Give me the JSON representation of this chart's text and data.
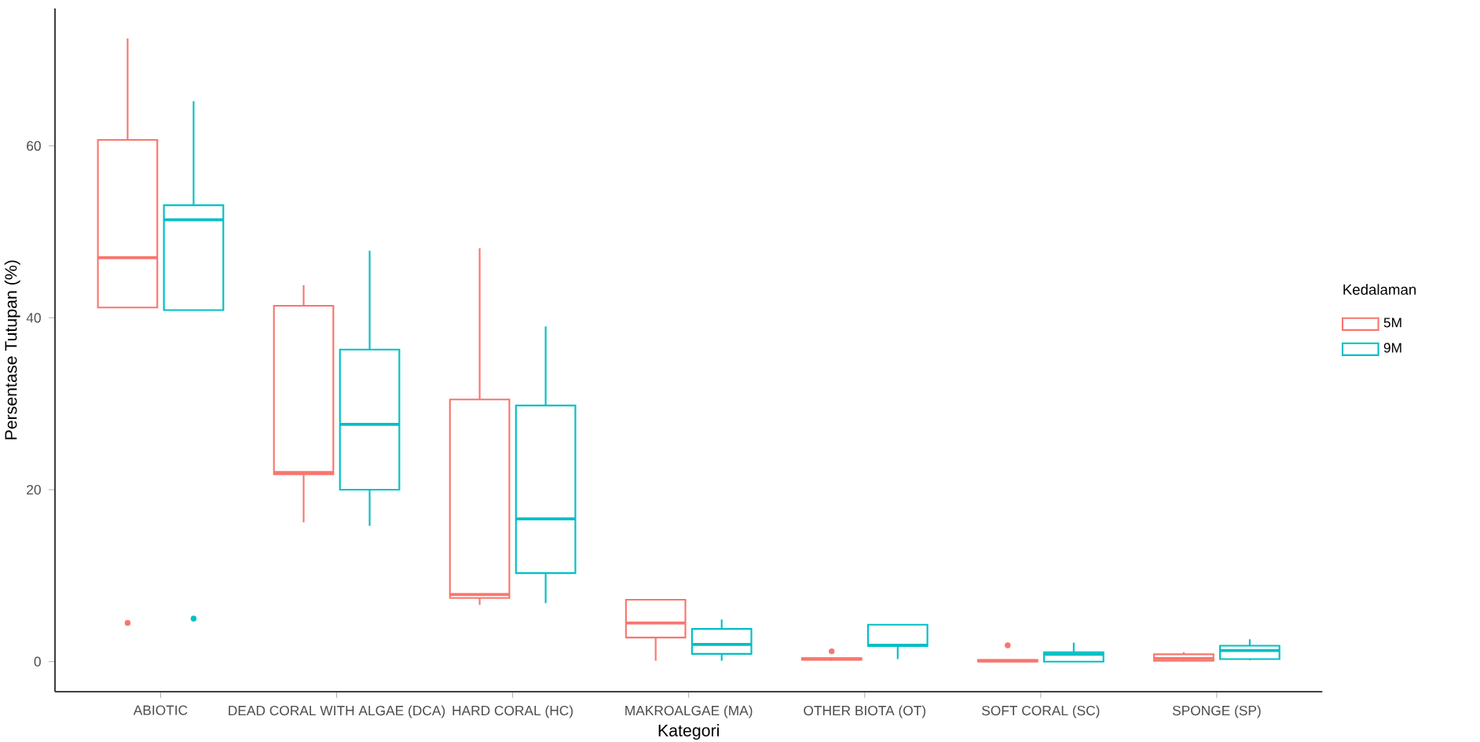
{
  "chart_data": {
    "type": "box",
    "xlabel": "Kategori",
    "ylabel": "Persentase Tutupan (%)",
    "legend_title": "Kedalaman",
    "legend": "right",
    "grid": false,
    "categories": [
      "ABIOTIC",
      "DEAD CORAL WITH ALGAE (DCA)",
      "HARD CORAL (HC)",
      "MAKROALGAE (MA)",
      "OTHER BIOTA (OT)",
      "SOFT CORAL (SC)",
      "SPONGE (SP)"
    ],
    "ylim": [
      -3.5,
      76
    ],
    "yticks": [
      0,
      20,
      40,
      60
    ],
    "series": [
      {
        "name": "5M",
        "color": "#f8766d",
        "boxes": [
          {
            "low": 41.2,
            "q1": 41.2,
            "median": 47.0,
            "q3": 60.7,
            "high": 72.5,
            "outliers": [
              4.5
            ]
          },
          {
            "low": 16.2,
            "q1": 21.8,
            "median": 22.0,
            "q3": 41.4,
            "high": 43.8
          },
          {
            "low": 6.6,
            "q1": 7.4,
            "median": 7.8,
            "q3": 30.5,
            "high": 48.1
          },
          {
            "low": 0.1,
            "q1": 2.8,
            "median": 4.5,
            "q3": 7.2,
            "high": 7.2
          },
          {
            "low": 0.1,
            "q1": 0.2,
            "median": 0.3,
            "q3": 0.4,
            "high": 0.4,
            "outliers": [
              1.2
            ]
          },
          {
            "low": 0,
            "q1": 0,
            "median": 0.1,
            "q3": 0.2,
            "high": 0.2,
            "outliers": [
              1.9
            ]
          },
          {
            "low": 0,
            "q1": 0.1,
            "median": 0.35,
            "q3": 0.85,
            "high": 1.1
          }
        ]
      },
      {
        "name": "9M",
        "color": "#00bfc4",
        "boxes": [
          {
            "low": 40.9,
            "q1": 40.9,
            "median": 51.4,
            "q3": 53.1,
            "high": 65.2,
            "outliers": [
              5.0
            ]
          },
          {
            "low": 15.8,
            "q1": 20.0,
            "median": 27.6,
            "q3": 36.3,
            "high": 47.8
          },
          {
            "low": 6.8,
            "q1": 10.3,
            "median": 16.6,
            "q3": 29.8,
            "high": 39.0
          },
          {
            "low": 0.1,
            "q1": 0.9,
            "median": 2.0,
            "q3": 3.8,
            "high": 4.9
          },
          {
            "low": 0.3,
            "q1": 1.8,
            "median": 1.9,
            "q3": 4.3,
            "high": 4.3
          },
          {
            "low": 0,
            "q1": 0,
            "median": 0.85,
            "q3": 1.1,
            "high": 2.2
          },
          {
            "low": 0.15,
            "q1": 0.3,
            "median": 1.3,
            "q3": 1.85,
            "high": 2.6
          }
        ]
      }
    ]
  }
}
